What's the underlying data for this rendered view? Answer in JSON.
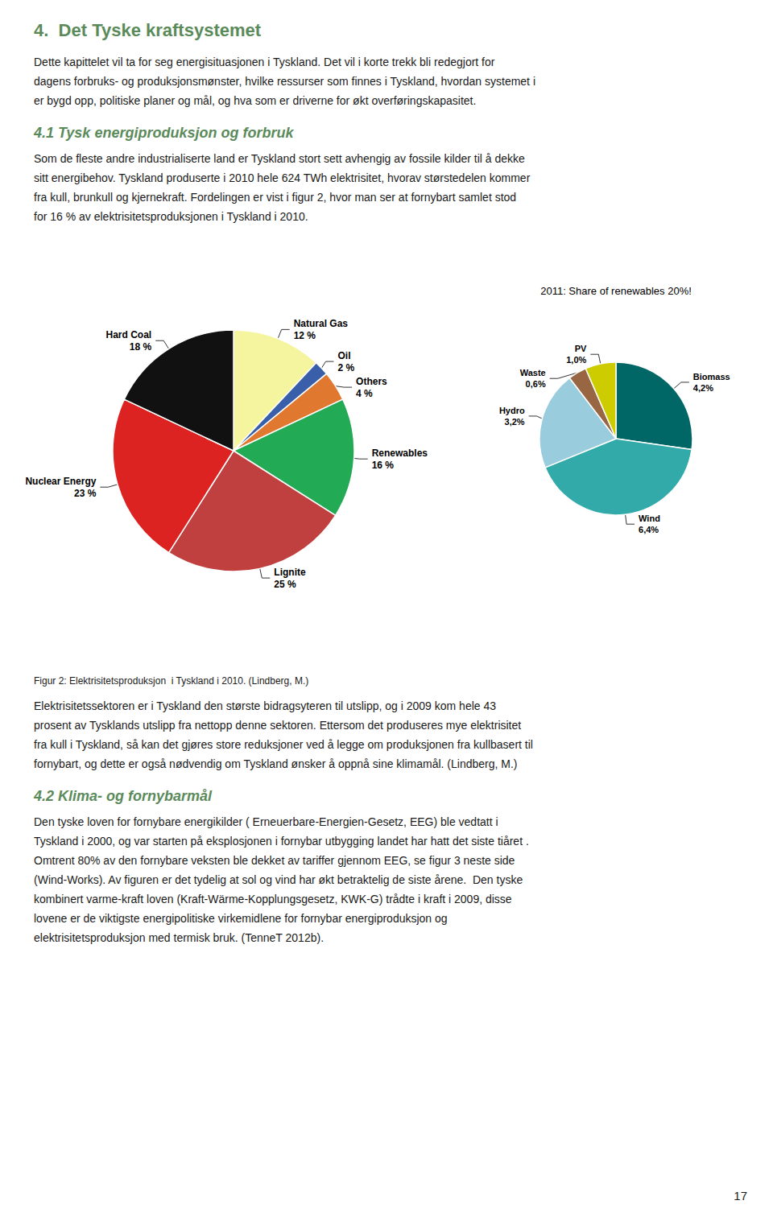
{
  "chart_data": [
    {
      "type": "pie",
      "categories": [
        "Natural Gas",
        "Oil",
        "Others",
        "Renewables",
        "Lignite",
        "Nuclear Energy",
        "Hard Coal"
      ],
      "values": [
        12,
        2,
        4,
        16,
        25,
        23,
        18
      ],
      "value_labels": [
        "12 %",
        "2 %",
        "4 %",
        "16 %",
        "25 %",
        "23 %",
        "18 %"
      ],
      "colors": [
        "#f5f5a0",
        "#3a5faa",
        "#e07830",
        "#22aa55",
        "#c04040",
        "#dd2222",
        "#111111"
      ],
      "data_labels": true,
      "legend": false,
      "annotations": [
        {
          "text": "4.  Det Tyske kraftsystemet",
          "style": "heading",
          "color": "#5a8a5a"
        },
        {
          "text": "Dette kapittelet vil ta for seg energisituasjonen i Tyskland. Det vil i korte trekk bli redegjort for",
          "style": "body"
        },
        {
          "text": "dagens forbruks- og produksjonsmønster, hvilke ressurser som finnes i Tyskland, hvordan systemet i",
          "style": "body"
        },
        {
          "text": "er bygd opp, politiske planer og mål, og hva som er driverne for økt overføringskapasitet.",
          "style": "body"
        },
        {
          "text": "4.1 Tysk energiproduksjon og forbruk",
          "style": "subheading",
          "color": "#5a8a5a"
        },
        {
          "text": "Som de fleste andre industrialiserte land er Tyskland stort sett avhengig av fossile kilder til å dekke",
          "style": "body"
        },
        {
          "text": "sitt energibehov. Tyskland produserte i 2010 hele 624 TWh elektrisitet, hvorav størstedelen kommer",
          "style": "body"
        },
        {
          "text": "fra kull, brunkull og kjernekraft. Fordelingen er vist i figur 2, hvor man ser at fornybart samlet stod",
          "style": "body"
        },
        {
          "text": "for 16 % av elektrisitetsproduksjonen i Tyskland i 2010.",
          "style": "body"
        },
        {
          "text": "Figur 2: Elektrisitetsproduksjon  i Tyskland i 2010. (Lindberg, M.)",
          "style": "caption"
        },
        {
          "text": "Elektrisitetssektoren er i Tyskland den største bidragsyteren til utslipp, og i 2009 kom hele 43",
          "style": "body"
        },
        {
          "text": "prosent av Tysklands utslipp fra nettopp denne sektoren. Ettersom det produseres mye elektrisitet",
          "style": "body"
        },
        {
          "text": "fra kull i Tyskland, så kan det gjøres store reduksjoner ved å legge om produksjonen fra kullbasert til",
          "style": "body"
        },
        {
          "text": "fornybart, og dette er også nødvendig om Tyskland ønsker å oppnå sine klimamål. (Lindberg, M.)",
          "style": "body"
        },
        {
          "text": "4.2 Klima- og fornybarmål",
          "style": "subheading",
          "color": "#5a8a5a"
        },
        {
          "text": "Den tyske loven for fornybare energikilder ( Erneuerbare-Energien-Gesetz, EEG) ble vedtatt i",
          "style": "body"
        },
        {
          "text": "Tyskland i 2000, og var starten på eksplosjonen i fornybar utbygging landet har hatt det siste tiåret .",
          "style": "body"
        },
        {
          "text": "Omtrent 80% av den fornybare veksten ble dekket av tariffer gjennom EEG, se figur 3 neste side",
          "style": "body"
        },
        {
          "text": "(Wind-Works). Av figuren er det tydelig at sol og vind har økt betraktelig de siste årene.  Den tyske",
          "style": "body"
        },
        {
          "text": "kombinert varme-kraft loven (Kraft-Wärme-Kopplungsgesetz, KWK-G) trådte i kraft i 2009, disse",
          "style": "body"
        },
        {
          "text": "lovene er de viktigste energipolitiske virkemidlene for fornybar energiproduksjon og",
          "style": "body"
        },
        {
          "text": "elektrisitetsproduksjon med termisk bruk. (TenneT 2012b).",
          "style": "body"
        },
        {
          "text": "17",
          "style": "page_number"
        }
      ]
    },
    {
      "type": "pie",
      "categories": [
        "Biomass",
        "Wind",
        "Hydro",
        "Waste",
        "PV"
      ],
      "values": [
        4.2,
        6.4,
        3.2,
        0.6,
        1.0
      ],
      "value_labels": [
        "4,2%",
        "6,4%",
        "3,2%",
        "0,6%",
        "1,0%"
      ],
      "colors": [
        "#006666",
        "#33aaaa",
        "#99ccdd",
        "#996644",
        "#cccc00"
      ],
      "data_labels": true,
      "legend": false,
      "annotations": [
        "2011: Share of renewables 20%!"
      ]
    }
  ]
}
